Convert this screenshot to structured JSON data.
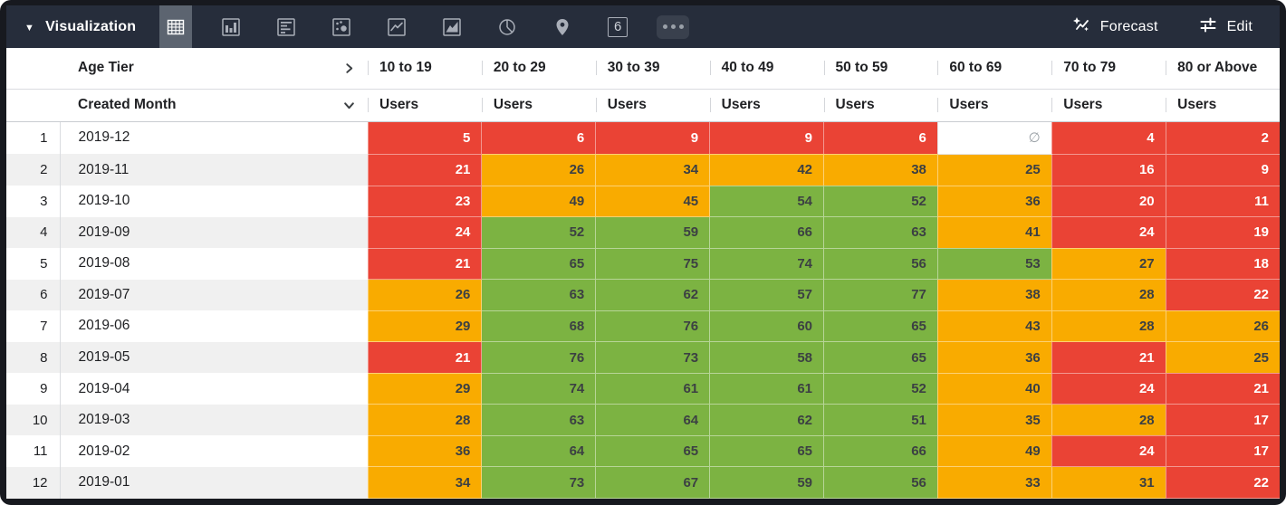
{
  "header": {
    "title": "Visualization",
    "forecast_label": "Forecast",
    "edit_label": "Edit",
    "viz_types": [
      {
        "name": "table",
        "selected": true
      },
      {
        "name": "bar",
        "selected": false
      },
      {
        "name": "bar-horizontal",
        "selected": false
      },
      {
        "name": "scatter",
        "selected": false
      },
      {
        "name": "line",
        "selected": false
      },
      {
        "name": "area",
        "selected": false
      },
      {
        "name": "pie",
        "selected": false
      },
      {
        "name": "map",
        "selected": false
      },
      {
        "name": "single-value",
        "selected": false,
        "label": "6"
      },
      {
        "name": "more",
        "selected": false
      }
    ]
  },
  "colors": {
    "red": "#EA4335",
    "orange": "#F9AB00",
    "green": "#7CB342",
    "topbar": "#262D3B",
    "selected_tab": "#5C6470"
  },
  "table": {
    "pivot_label": "Age Tier",
    "dimension_label": "Created Month",
    "measure_label": "Users",
    "null_symbol": "∅",
    "age_tiers": [
      "10 to 19",
      "20 to 29",
      "30 to 39",
      "40 to 49",
      "50 to 59",
      "60 to 69",
      "70 to 79",
      "80 or Above"
    ],
    "rows": [
      {
        "index": 1,
        "month": "2019-12",
        "cells": [
          {
            "value": "5",
            "color": "red"
          },
          {
            "value": "6",
            "color": "red"
          },
          {
            "value": "9",
            "color": "red"
          },
          {
            "value": "9",
            "color": "red"
          },
          {
            "value": "6",
            "color": "red"
          },
          {
            "value": "∅",
            "color": "null"
          },
          {
            "value": "4",
            "color": "red"
          },
          {
            "value": "2",
            "color": "red"
          }
        ]
      },
      {
        "index": 2,
        "month": "2019-11",
        "cells": [
          {
            "value": "21",
            "color": "red"
          },
          {
            "value": "26",
            "color": "orange"
          },
          {
            "value": "34",
            "color": "orange"
          },
          {
            "value": "42",
            "color": "orange"
          },
          {
            "value": "38",
            "color": "orange"
          },
          {
            "value": "25",
            "color": "orange"
          },
          {
            "value": "16",
            "color": "red"
          },
          {
            "value": "9",
            "color": "red"
          }
        ]
      },
      {
        "index": 3,
        "month": "2019-10",
        "cells": [
          {
            "value": "23",
            "color": "red"
          },
          {
            "value": "49",
            "color": "orange"
          },
          {
            "value": "45",
            "color": "orange"
          },
          {
            "value": "54",
            "color": "green"
          },
          {
            "value": "52",
            "color": "green"
          },
          {
            "value": "36",
            "color": "orange"
          },
          {
            "value": "20",
            "color": "red"
          },
          {
            "value": "11",
            "color": "red"
          }
        ]
      },
      {
        "index": 4,
        "month": "2019-09",
        "cells": [
          {
            "value": "24",
            "color": "red"
          },
          {
            "value": "52",
            "color": "green"
          },
          {
            "value": "59",
            "color": "green"
          },
          {
            "value": "66",
            "color": "green"
          },
          {
            "value": "63",
            "color": "green"
          },
          {
            "value": "41",
            "color": "orange"
          },
          {
            "value": "24",
            "color": "red"
          },
          {
            "value": "19",
            "color": "red"
          }
        ]
      },
      {
        "index": 5,
        "month": "2019-08",
        "cells": [
          {
            "value": "21",
            "color": "red"
          },
          {
            "value": "65",
            "color": "green"
          },
          {
            "value": "75",
            "color": "green"
          },
          {
            "value": "74",
            "color": "green"
          },
          {
            "value": "56",
            "color": "green"
          },
          {
            "value": "53",
            "color": "green"
          },
          {
            "value": "27",
            "color": "orange"
          },
          {
            "value": "18",
            "color": "red"
          }
        ]
      },
      {
        "index": 6,
        "month": "2019-07",
        "cells": [
          {
            "value": "26",
            "color": "orange"
          },
          {
            "value": "63",
            "color": "green"
          },
          {
            "value": "62",
            "color": "green"
          },
          {
            "value": "57",
            "color": "green"
          },
          {
            "value": "77",
            "color": "green"
          },
          {
            "value": "38",
            "color": "orange"
          },
          {
            "value": "28",
            "color": "orange"
          },
          {
            "value": "22",
            "color": "red"
          }
        ]
      },
      {
        "index": 7,
        "month": "2019-06",
        "cells": [
          {
            "value": "29",
            "color": "orange"
          },
          {
            "value": "68",
            "color": "green"
          },
          {
            "value": "76",
            "color": "green"
          },
          {
            "value": "60",
            "color": "green"
          },
          {
            "value": "65",
            "color": "green"
          },
          {
            "value": "43",
            "color": "orange"
          },
          {
            "value": "28",
            "color": "orange"
          },
          {
            "value": "26",
            "color": "orange"
          }
        ]
      },
      {
        "index": 8,
        "month": "2019-05",
        "cells": [
          {
            "value": "21",
            "color": "red"
          },
          {
            "value": "76",
            "color": "green"
          },
          {
            "value": "73",
            "color": "green"
          },
          {
            "value": "58",
            "color": "green"
          },
          {
            "value": "65",
            "color": "green"
          },
          {
            "value": "36",
            "color": "orange"
          },
          {
            "value": "21",
            "color": "red"
          },
          {
            "value": "25",
            "color": "orange"
          }
        ]
      },
      {
        "index": 9,
        "month": "2019-04",
        "cells": [
          {
            "value": "29",
            "color": "orange"
          },
          {
            "value": "74",
            "color": "green"
          },
          {
            "value": "61",
            "color": "green"
          },
          {
            "value": "61",
            "color": "green"
          },
          {
            "value": "52",
            "color": "green"
          },
          {
            "value": "40",
            "color": "orange"
          },
          {
            "value": "24",
            "color": "red"
          },
          {
            "value": "21",
            "color": "red"
          }
        ]
      },
      {
        "index": 10,
        "month": "2019-03",
        "cells": [
          {
            "value": "28",
            "color": "orange"
          },
          {
            "value": "63",
            "color": "green"
          },
          {
            "value": "64",
            "color": "green"
          },
          {
            "value": "62",
            "color": "green"
          },
          {
            "value": "51",
            "color": "green"
          },
          {
            "value": "35",
            "color": "orange"
          },
          {
            "value": "28",
            "color": "orange"
          },
          {
            "value": "17",
            "color": "red"
          }
        ]
      },
      {
        "index": 11,
        "month": "2019-02",
        "cells": [
          {
            "value": "36",
            "color": "orange"
          },
          {
            "value": "64",
            "color": "green"
          },
          {
            "value": "65",
            "color": "green"
          },
          {
            "value": "65",
            "color": "green"
          },
          {
            "value": "66",
            "color": "green"
          },
          {
            "value": "49",
            "color": "orange"
          },
          {
            "value": "24",
            "color": "red"
          },
          {
            "value": "17",
            "color": "red"
          }
        ]
      },
      {
        "index": 12,
        "month": "2019-01",
        "cells": [
          {
            "value": "34",
            "color": "orange"
          },
          {
            "value": "73",
            "color": "green"
          },
          {
            "value": "67",
            "color": "green"
          },
          {
            "value": "59",
            "color": "green"
          },
          {
            "value": "56",
            "color": "green"
          },
          {
            "value": "33",
            "color": "orange"
          },
          {
            "value": "31",
            "color": "orange"
          },
          {
            "value": "22",
            "color": "red"
          }
        ]
      }
    ]
  }
}
